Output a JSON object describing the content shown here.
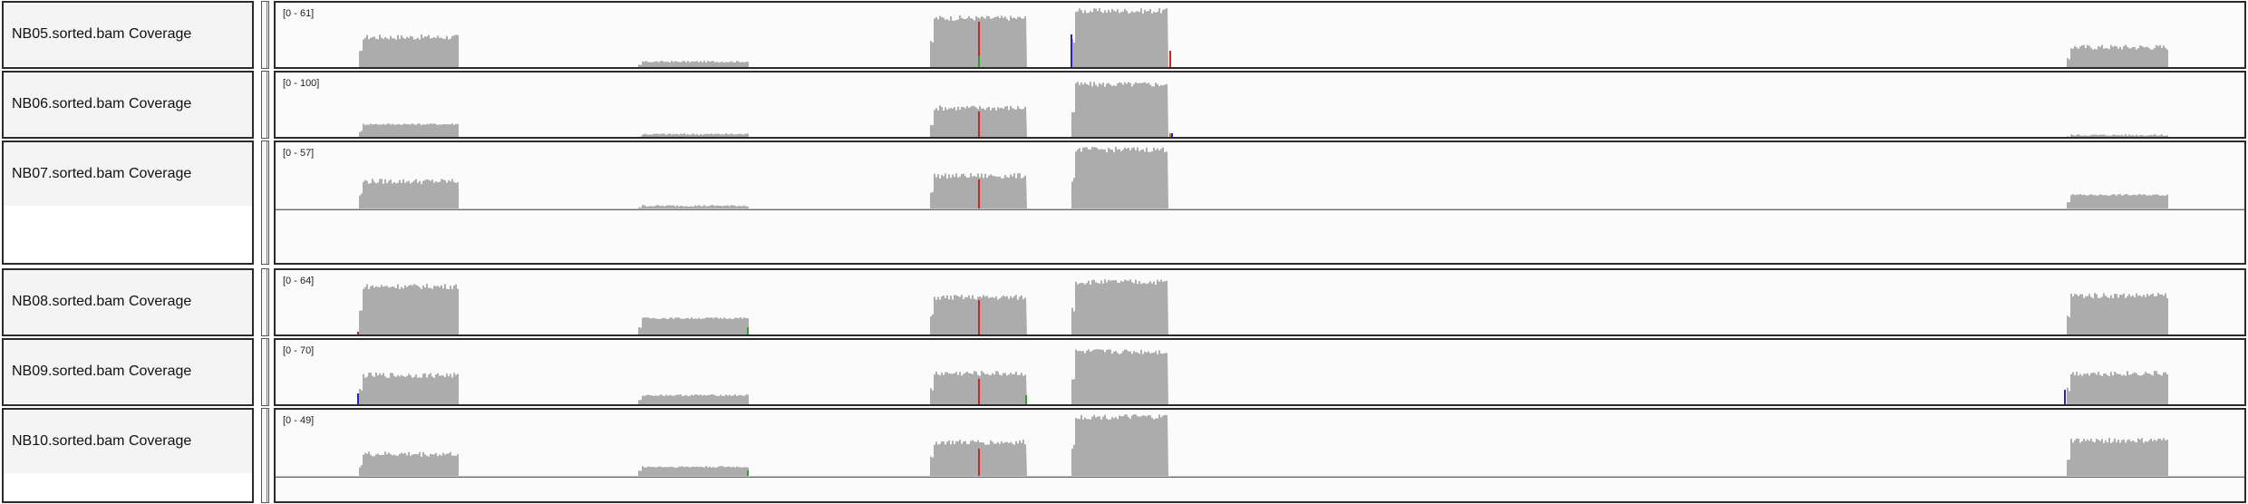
{
  "tracks": [
    {
      "name": "NB05.sorted.bam Coverage",
      "range": "[0 - 61]"
    },
    {
      "name": "NB06.sorted.bam Coverage",
      "range": "[0 - 100]"
    },
    {
      "name": "NB07.sorted.bam Coverage",
      "range": "[0 - 57]"
    },
    {
      "name": "NB08.sorted.bam Coverage",
      "range": "[0 - 64]"
    },
    {
      "name": "NB09.sorted.bam Coverage",
      "range": "[0 - 70]"
    },
    {
      "name": "NB10.sorted.bam Coverage",
      "range": "[0 - 49]"
    }
  ],
  "colors": {
    "coverage": "#acacac",
    "mismatch_a": "#2aa12a",
    "mismatch_c": "#2424c8",
    "mismatch_g": "#d1761d",
    "mismatch_t": "#d62020",
    "border": "#2b2b2b"
  }
}
